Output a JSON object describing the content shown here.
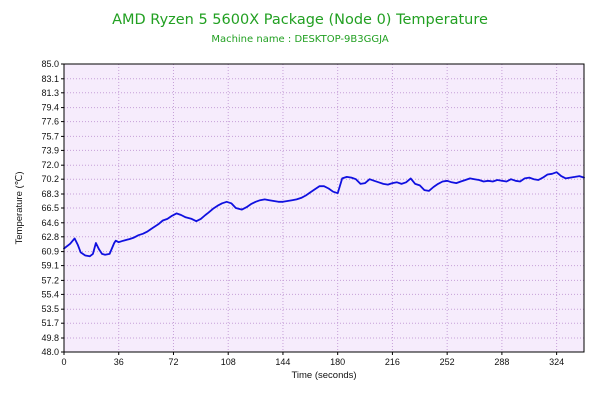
{
  "chart_data": {
    "type": "line",
    "title": "AMD Ryzen 5 5600X Package (Node 0) Temperature",
    "subtitle": "Machine name : DESKTOP-9B3GGJA",
    "xlabel": "Time (seconds)",
    "ylabel": "Temperature (℃)",
    "xlim": [
      0,
      342
    ],
    "ylim": [
      48.0,
      85.0
    ],
    "grid": true,
    "x_ticks": [
      0,
      36,
      72,
      108,
      144,
      180,
      216,
      252,
      288,
      324
    ],
    "x_tick_labels": [
      "0",
      "36",
      "72",
      "108",
      "144",
      "180",
      "216",
      "252",
      "288",
      "324"
    ],
    "y_ticks": [
      48.0,
      49.8,
      51.7,
      53.5,
      55.4,
      57.2,
      59.1,
      60.9,
      62.8,
      64.6,
      66.5,
      68.3,
      70.2,
      72.0,
      73.9,
      75.7,
      77.6,
      79.4,
      81.3,
      83.1,
      85.0
    ],
    "y_tick_labels": [
      "48.0",
      "49.8",
      "51.7",
      "53.5",
      "55.4",
      "57.2",
      "59.1",
      "60.9",
      "62.8",
      "64.6",
      "66.5",
      "68.3",
      "70.2",
      "72.0",
      "73.9",
      "75.7",
      "77.6",
      "79.4",
      "81.3",
      "83.1",
      "85.0"
    ],
    "colors": {
      "title": "#22A022",
      "series": "#1010E0",
      "plot_background": "#F6ECFC",
      "grid": "#C6A0D8",
      "frame": "#000000"
    },
    "series": [
      {
        "color": "#1010E0",
        "x": [
          0,
          4,
          7,
          9,
          11,
          14,
          17,
          19,
          21,
          23,
          25,
          27,
          30,
          33,
          34,
          36,
          39,
          43,
          46,
          49,
          52,
          55,
          58,
          62,
          65,
          68,
          71,
          74,
          77,
          80,
          84,
          87,
          90,
          93,
          95,
          98,
          101,
          104,
          107,
          110,
          113,
          117,
          120,
          123,
          126,
          129,
          132,
          135,
          138,
          141,
          144,
          147,
          150,
          153,
          156,
          159,
          162,
          165,
          168,
          171,
          174,
          177,
          180,
          183,
          186,
          189,
          192,
          195,
          198,
          201,
          204,
          207,
          210,
          213,
          216,
          219,
          222,
          225,
          228,
          231,
          234,
          237,
          240,
          243,
          246,
          249,
          252,
          255,
          258,
          261,
          264,
          267,
          270,
          273,
          276,
          279,
          282,
          285,
          288,
          291,
          294,
          297,
          300,
          303,
          306,
          309,
          312,
          315,
          318,
          321,
          324,
          327,
          330,
          333,
          336,
          339,
          342
        ],
        "y": [
          61.3,
          61.9,
          62.6,
          61.8,
          60.8,
          60.4,
          60.3,
          60.6,
          62.0,
          61.2,
          60.6,
          60.5,
          60.6,
          62.0,
          62.3,
          62.1,
          62.3,
          62.5,
          62.7,
          63.0,
          63.2,
          63.5,
          63.9,
          64.4,
          64.9,
          65.1,
          65.5,
          65.8,
          65.6,
          65.3,
          65.1,
          64.8,
          65.1,
          65.6,
          65.9,
          66.4,
          66.8,
          67.1,
          67.3,
          67.1,
          66.5,
          66.3,
          66.6,
          67.0,
          67.3,
          67.5,
          67.6,
          67.5,
          67.4,
          67.3,
          67.3,
          67.4,
          67.5,
          67.6,
          67.8,
          68.1,
          68.5,
          68.9,
          69.3,
          69.3,
          69.0,
          68.6,
          68.4,
          70.3,
          70.5,
          70.4,
          70.2,
          69.6,
          69.7,
          70.2,
          70.0,
          69.8,
          69.6,
          69.5,
          69.7,
          69.8,
          69.6,
          69.8,
          70.3,
          69.6,
          69.4,
          68.8,
          68.7,
          69.2,
          69.6,
          69.9,
          70.0,
          69.8,
          69.7,
          69.9,
          70.1,
          70.3,
          70.2,
          70.1,
          69.9,
          70.0,
          69.9,
          70.1,
          70.0,
          69.9,
          70.2,
          70.0,
          69.9,
          70.3,
          70.4,
          70.2,
          70.1,
          70.4,
          70.8,
          70.9,
          71.1,
          70.6,
          70.3,
          70.4,
          70.5,
          70.6,
          70.4
        ]
      }
    ]
  }
}
